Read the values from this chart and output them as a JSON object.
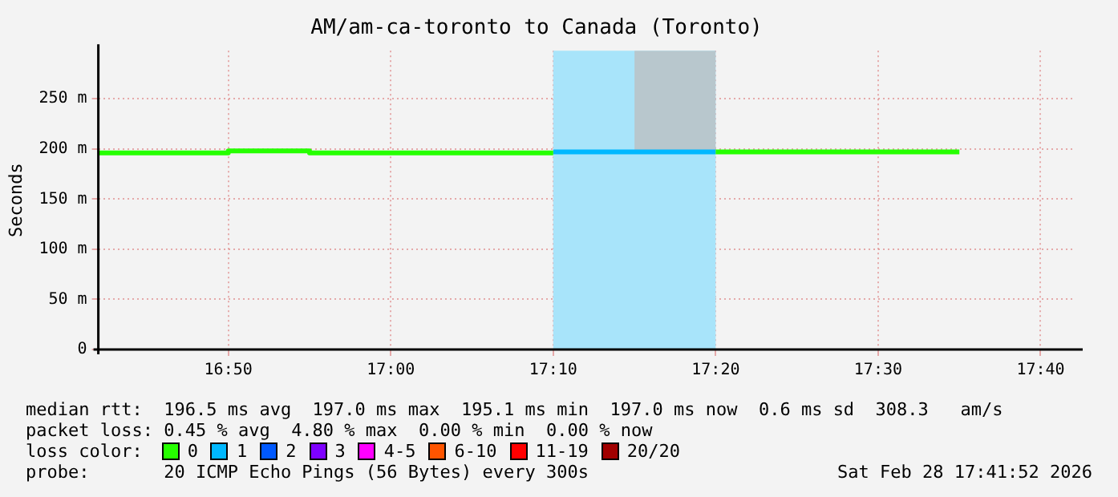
{
  "chart_data": {
    "type": "line",
    "title": "AM/am-ca-toronto to Canada (Toronto)",
    "ylabel": "Seconds",
    "xlim": [
      16.7,
      17.7
    ],
    "xticks": [
      {
        "value": 16.833333,
        "label": "16:50"
      },
      {
        "value": 17,
        "label": "17:00"
      },
      {
        "value": 17.166667,
        "label": "17:10"
      },
      {
        "value": 17.333333,
        "label": "17:20"
      },
      {
        "value": 17.5,
        "label": "17:30"
      },
      {
        "value": 17.666667,
        "label": "17:40"
      }
    ],
    "ylim": [
      0,
      298
    ],
    "yticks": [
      0,
      {
        "value": 50,
        "label": "50 m"
      },
      {
        "value": 100,
        "label": "100 m"
      },
      {
        "value": 150,
        "label": "150 m"
      },
      {
        "value": 200,
        "label": "200 m"
      },
      {
        "value": 250,
        "label": "250 m"
      }
    ],
    "grid": true,
    "legend": "bottom",
    "legend_title": "loss color:",
    "marker": "none",
    "line_style": "solid",
    "bands": [
      {
        "axis": "x",
        "from": 17.166667,
        "to": 17.333333,
        "color": "#a8e4fa"
      }
    ],
    "series": [
      {
        "name": "0",
        "color": "#26ff00",
        "x": [
          16.7,
          16.833333,
          16.833333,
          16.916667,
          16.916667,
          17.166667,
          null,
          17.333333,
          17.583333
        ],
        "values": [
          196,
          196,
          198,
          198,
          196,
          196,
          null,
          197,
          197
        ]
      },
      {
        "name": "1",
        "color": "#00b8ff",
        "x": [
          17.166667,
          17.25,
          17.333333
        ],
        "values": [
          197,
          197,
          197
        ],
        "lower": [
          null,
          199,
          199
        ],
        "upper": [
          null,
          298,
          298
        ]
      },
      {
        "name": "2",
        "color": "#0059ff"
      },
      {
        "name": "3",
        "color": "#7e00ff"
      },
      {
        "name": "4-5",
        "color": "#ff00ff"
      },
      {
        "name": "6-10",
        "color": "#ff5500"
      },
      {
        "name": "11-19",
        "color": "#ff0000"
      },
      {
        "name": "20/20",
        "color": "#a10000"
      }
    ],
    "annotations": [
      "median rtt:  196.5 ms avg  197.0 ms max  195.1 ms min  197.0 ms now  0.6 ms sd  308.3   am/s",
      "packet loss: 0.45 % avg  4.80 % max  0.00 % min  0.00 % now",
      "probe:       20 ICMP Echo Pings (56 Bytes) every 300s",
      "Sat Feb 28 17:41:52 2026"
    ]
  }
}
